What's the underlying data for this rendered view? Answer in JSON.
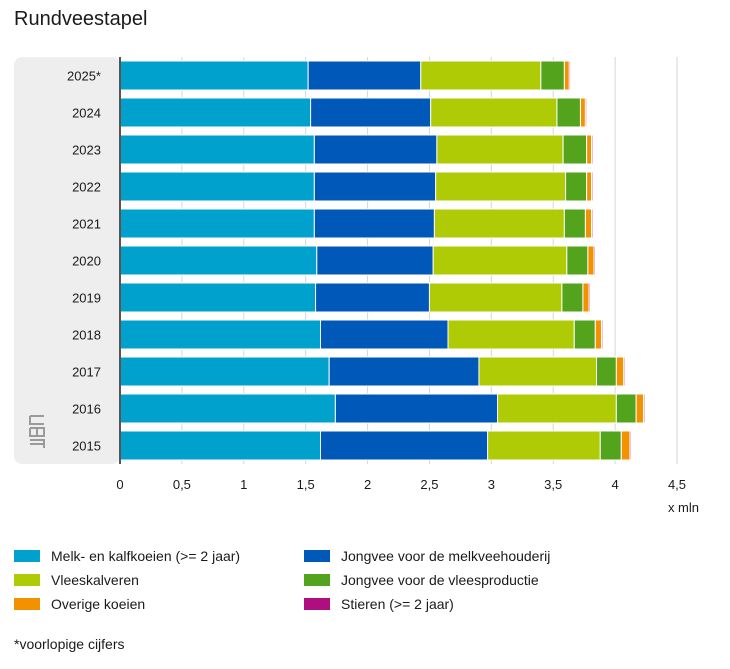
{
  "title": "Rundveestapel",
  "chart_data": {
    "type": "bar",
    "orientation": "horizontal",
    "stacked": true,
    "title": "Rundveestapel",
    "xlabel": "x mln",
    "ylabel": "",
    "xlim": [
      0,
      4.5
    ],
    "xticks": [
      "0",
      "0,5",
      "1",
      "1,5",
      "2",
      "2,5",
      "3",
      "3,5",
      "4",
      "4,5"
    ],
    "grid": true,
    "categories": [
      "2025*",
      "2024",
      "2023",
      "2022",
      "2021",
      "2020",
      "2019",
      "2018",
      "2017",
      "2016",
      "2015"
    ],
    "series": [
      {
        "name": "Melk- en kalfkoeien (>= 2 jaar)",
        "color": "#00a1cd",
        "values": [
          1.52,
          1.54,
          1.57,
          1.57,
          1.57,
          1.59,
          1.58,
          1.62,
          1.69,
          1.74,
          1.62
        ]
      },
      {
        "name": "Jongvee voor de melkveehouderij",
        "color": "#0058b8",
        "values": [
          0.91,
          0.97,
          0.99,
          0.98,
          0.97,
          0.94,
          0.92,
          1.03,
          1.21,
          1.31,
          1.35
        ]
      },
      {
        "name": "Vleeskalveren",
        "color": "#afcb05",
        "values": [
          0.97,
          1.02,
          1.02,
          1.05,
          1.05,
          1.08,
          1.07,
          1.02,
          0.95,
          0.96,
          0.91
        ]
      },
      {
        "name": "Jongvee voor de vleesproductie",
        "color": "#53a31d",
        "values": [
          0.19,
          0.19,
          0.19,
          0.17,
          0.17,
          0.17,
          0.17,
          0.17,
          0.16,
          0.16,
          0.17
        ]
      },
      {
        "name": "Overige koeien",
        "color": "#f39200",
        "values": [
          0.04,
          0.04,
          0.04,
          0.04,
          0.05,
          0.05,
          0.05,
          0.05,
          0.06,
          0.06,
          0.07
        ]
      },
      {
        "name": "Stieren (>= 2 jaar)",
        "color": "#af0e80",
        "values": [
          0.01,
          0.01,
          0.01,
          0.01,
          0.01,
          0.01,
          0.01,
          0.01,
          0.01,
          0.01,
          0.01
        ]
      }
    ]
  },
  "legend": [
    {
      "label": "Melk- en kalfkoeien (>= 2 jaar)",
      "color": "#00a1cd"
    },
    {
      "label": "Jongvee voor de melkveehouderij",
      "color": "#0058b8"
    },
    {
      "label": "Vleeskalveren",
      "color": "#afcb05"
    },
    {
      "label": "Jongvee voor de vleesproductie",
      "color": "#53a31d"
    },
    {
      "label": "Overige koeien",
      "color": "#f39200"
    },
    {
      "label": "Stieren (>= 2 jaar)",
      "color": "#af0e80"
    }
  ],
  "footnote": "*voorlopige cijfers"
}
